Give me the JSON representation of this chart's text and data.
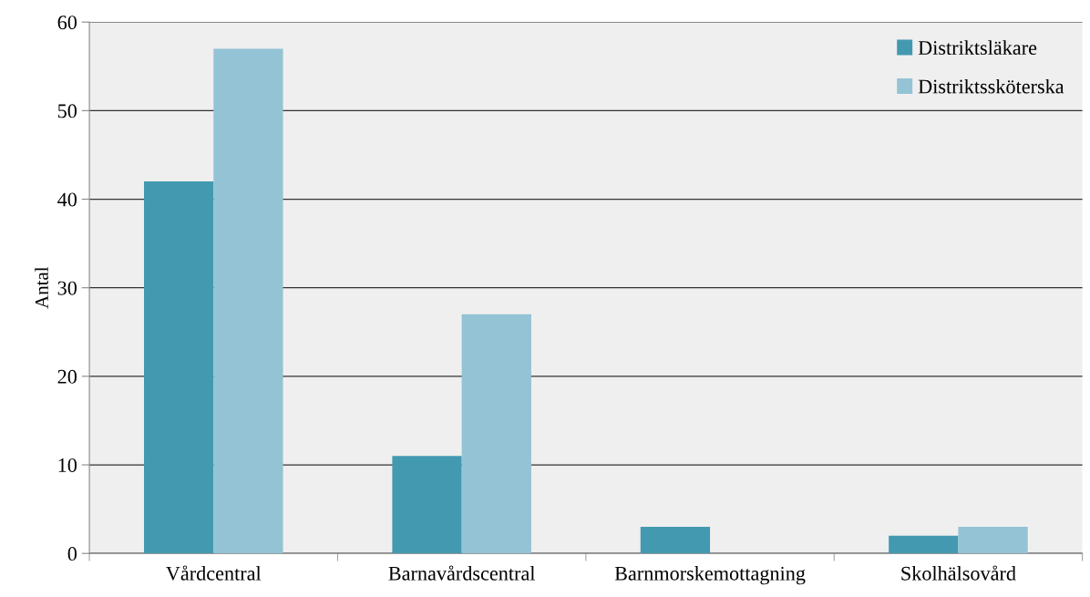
{
  "chart_data": {
    "type": "bar",
    "ylabel": "Antal",
    "categories": [
      "Vårdcentral",
      "Barnavårdscentral",
      "Barnmorskemottagning",
      "Skolhälsovård"
    ],
    "series": [
      {
        "name": "Distriktsläkare",
        "color": "#4399b0",
        "values": [
          42,
          11,
          3,
          2
        ]
      },
      {
        "name": "Distriktssköterska",
        "color": "#93c3d5",
        "values": [
          57,
          27,
          0,
          3
        ]
      }
    ],
    "ylim": [
      0,
      60
    ],
    "yticks": [
      0,
      10,
      20,
      30,
      40,
      50,
      60
    ],
    "grid": "y",
    "legend": "top right"
  }
}
